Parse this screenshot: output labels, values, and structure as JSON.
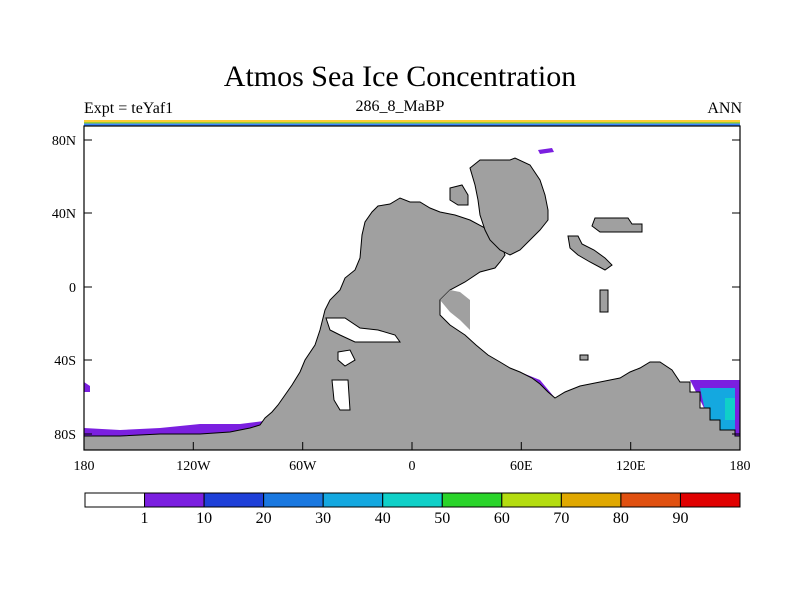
{
  "title": "Atmos Sea Ice Concentration",
  "subtitle_left": "Expt = teYaf1",
  "subtitle_center": "286_8_MaBP",
  "subtitle_right": "ANN",
  "colors": {
    "land": "#a0a0a0",
    "ocean": "#ffffff",
    "border": "#000000",
    "top_strip": [
      "#3a86ff",
      "#9acd32",
      "#ffcc33"
    ]
  },
  "axes": {
    "x_labels": [
      "180",
      "120W",
      "60W",
      "0",
      "60E",
      "120E",
      "180"
    ],
    "y_labels": [
      "80N",
      "40N",
      "0",
      "40S",
      "80S"
    ]
  },
  "colorbar": {
    "colors": [
      "#ffffff",
      "#7b1fe0",
      "#1e40d8",
      "#1a78e0",
      "#14a8e0",
      "#10d0c8",
      "#2ad42a",
      "#b4dc10",
      "#e0a800",
      "#e05010",
      "#e00000"
    ],
    "labels": [
      "1",
      "10",
      "20",
      "30",
      "40",
      "50",
      "60",
      "70",
      "80",
      "90"
    ]
  }
}
